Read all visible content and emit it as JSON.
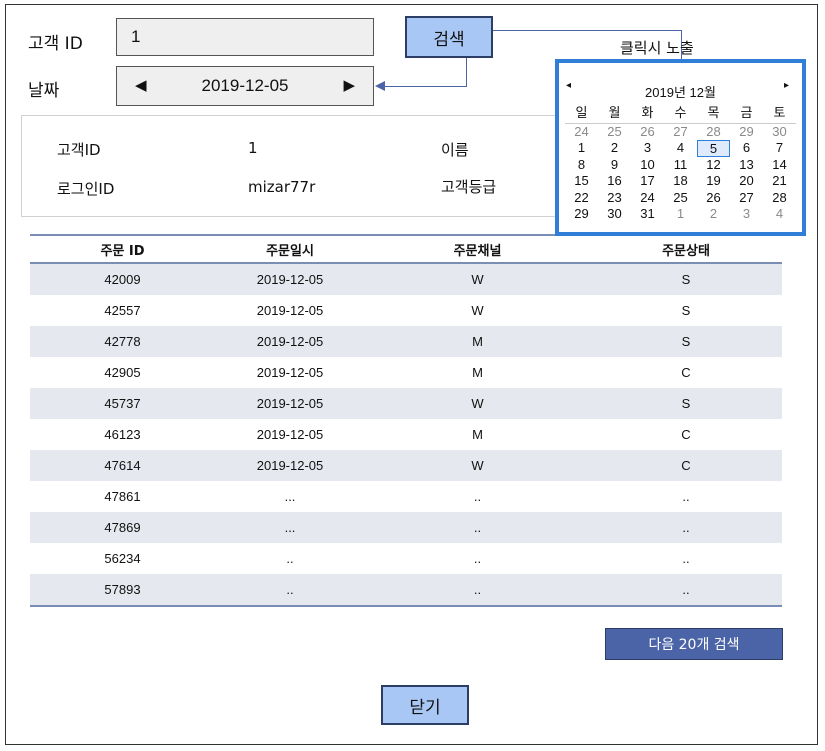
{
  "form": {
    "customer_id_label": "고객 ID",
    "customer_id_value": "1",
    "search_label": "검색",
    "date_label": "날짜",
    "date_value": "2019-12-05",
    "prev_arrow": "◀",
    "next_arrow": "▶"
  },
  "annotation": {
    "popup_note": "클릭시 노출"
  },
  "calendar": {
    "title": "2019년 12월",
    "prev": "◂",
    "next": "▸",
    "weekdays": [
      "일",
      "월",
      "화",
      "수",
      "목",
      "금",
      "토"
    ],
    "weeks": [
      [
        "24",
        "25",
        "26",
        "27",
        "28",
        "29",
        "30"
      ],
      [
        "1",
        "2",
        "3",
        "4",
        "5",
        "6",
        "7"
      ],
      [
        "8",
        "9",
        "10",
        "11",
        "12",
        "13",
        "14"
      ],
      [
        "15",
        "16",
        "17",
        "18",
        "19",
        "20",
        "21"
      ],
      [
        "22",
        "23",
        "24",
        "25",
        "26",
        "27",
        "28"
      ],
      [
        "29",
        "30",
        "31",
        "1",
        "2",
        "3",
        "4"
      ]
    ],
    "selected": "5"
  },
  "customer_info": {
    "id_label": "고객ID",
    "id_value": "1",
    "name_label": "이름",
    "login_label": "로그인ID",
    "login_value": "mizar77r",
    "grade_label": "고객등급"
  },
  "orders": {
    "headers": [
      "주문 ID",
      "주문일시",
      "주문채널",
      "주문상태"
    ],
    "rows": [
      [
        "42009",
        "2019-12-05",
        "W",
        "S"
      ],
      [
        "42557",
        "2019-12-05",
        "W",
        "S"
      ],
      [
        "42778",
        "2019-12-05",
        "M",
        "S"
      ],
      [
        "42905",
        "2019-12-05",
        "M",
        "C"
      ],
      [
        "45737",
        "2019-12-05",
        "W",
        "S"
      ],
      [
        "46123",
        "2019-12-05",
        "M",
        "C"
      ],
      [
        "47614",
        "2019-12-05",
        "W",
        "C"
      ],
      [
        "47861",
        "...",
        "..",
        ".."
      ],
      [
        "47869",
        "...",
        "..",
        ".."
      ],
      [
        "56234",
        "..",
        "..",
        ".."
      ],
      [
        "57893",
        "..",
        "..",
        ".."
      ]
    ]
  },
  "buttons": {
    "next_20": "다음 20개 검색",
    "close": "닫기"
  }
}
